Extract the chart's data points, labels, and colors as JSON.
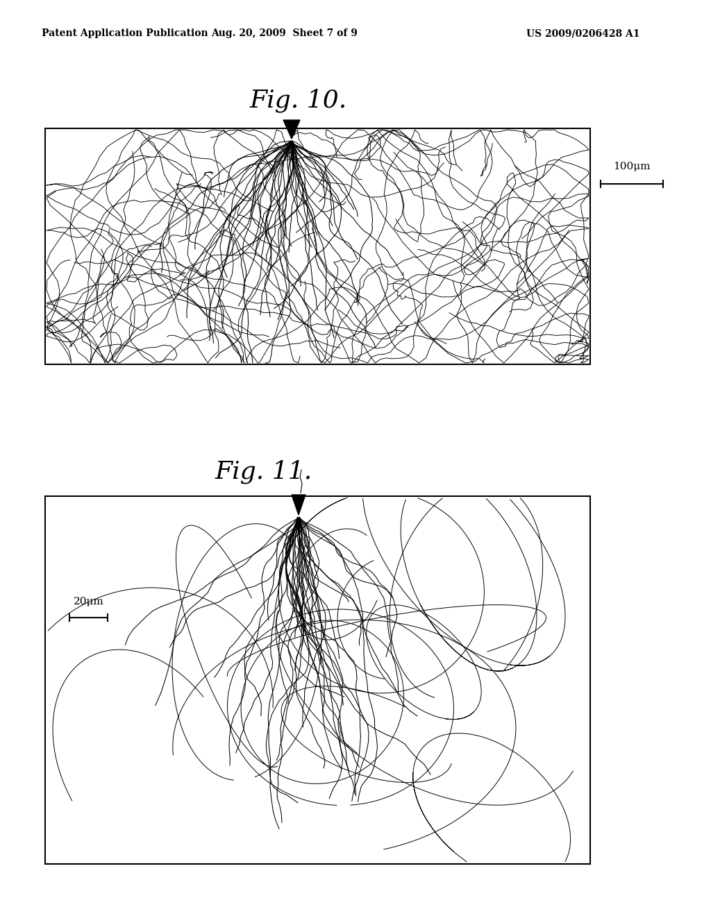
{
  "bg_color": "#ffffff",
  "header_left": "Patent Application Publication",
  "header_center": "Aug. 20, 2009  Sheet 7 of 9",
  "header_right": "US 2009/0206428 A1",
  "fig10_title": "Fig. 10.",
  "fig11_title": "Fig. 11.",
  "fig10_scalebar_label": "100μm",
  "fig11_scalebar_label": "20μm",
  "seed": 42
}
